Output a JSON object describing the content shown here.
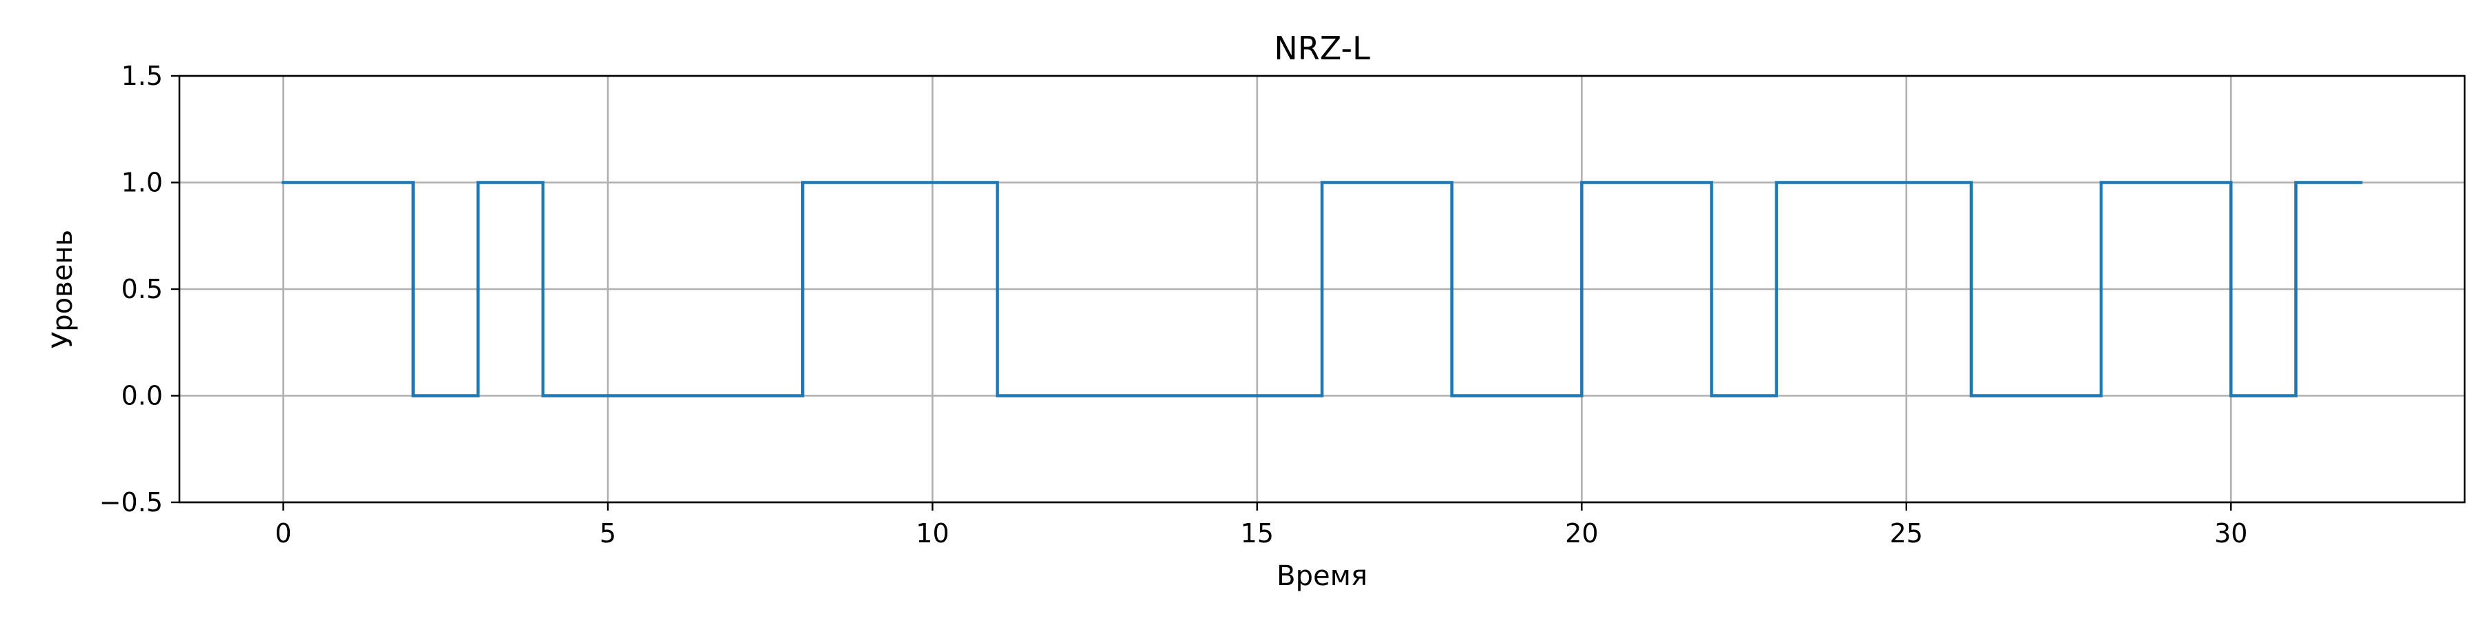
{
  "chart_data": {
    "type": "line",
    "step": "post",
    "title": "NRZ-L",
    "xlabel": "Время",
    "ylabel": "Уровень",
    "xlim": [
      -1.6,
      33.6
    ],
    "ylim": [
      -0.5,
      1.5
    ],
    "xticks": [
      0,
      5,
      10,
      15,
      20,
      25,
      30
    ],
    "xtick_labels": [
      "0",
      "5",
      "10",
      "15",
      "20",
      "25",
      "30"
    ],
    "yticks": [
      -0.5,
      0.0,
      0.5,
      1.0,
      1.5
    ],
    "ytick_labels": [
      "−0.5",
      "0.0",
      "0.5",
      "1.0",
      "1.5"
    ],
    "grid": true,
    "legend": false,
    "series": [
      {
        "color": "#1f77b4",
        "x": [
          0,
          2,
          3,
          4,
          8,
          11,
          16,
          18,
          20,
          22,
          23,
          26,
          28,
          30,
          31,
          32
        ],
        "y": [
          1,
          0,
          1,
          0,
          1,
          0,
          1,
          0,
          1,
          0,
          1,
          0,
          1,
          0,
          1,
          1
        ]
      }
    ]
  }
}
